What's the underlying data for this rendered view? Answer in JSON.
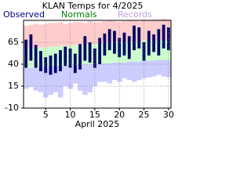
{
  "chart_data": {
    "type": "range-bar",
    "title": "KLAN Temps for 4/2025",
    "x_label": "April 2025",
    "x": [
      1,
      2,
      3,
      4,
      5,
      6,
      7,
      8,
      9,
      10,
      11,
      12,
      13,
      14,
      15,
      16,
      17,
      18,
      19,
      20,
      21,
      22,
      23,
      24,
      25,
      26,
      27,
      28,
      29,
      30
    ],
    "series": [
      {
        "name": "Observed",
        "color": "#000066",
        "legend_color": "#000080",
        "low": [
          36,
          44,
          36,
          32,
          30,
          28,
          30,
          32,
          38,
          36,
          30,
          34,
          44,
          42,
          36,
          40,
          50,
          56,
          52,
          48,
          50,
          46,
          56,
          58,
          44,
          50,
          54,
          50,
          58,
          56
        ],
        "high": [
          68,
          74,
          62,
          55,
          48,
          50,
          52,
          56,
          60,
          58,
          52,
          63,
          72,
          65,
          58,
          70,
          75,
          80,
          78,
          70,
          76,
          72,
          84,
          82,
          65,
          78,
          74,
          80,
          85,
          82
        ]
      },
      {
        "name": "Normals",
        "color": "#ccffcc",
        "legend_color": "#008000",
        "low": [
          36,
          36,
          36,
          37,
          37,
          37,
          38,
          38,
          38,
          39,
          39,
          39,
          40,
          40,
          40,
          41,
          41,
          41,
          42,
          42,
          42,
          43,
          43,
          43,
          44,
          44,
          44,
          45,
          45,
          45
        ],
        "high": [
          58,
          58,
          59,
          59,
          59,
          60,
          60,
          61,
          61,
          61,
          62,
          62,
          62,
          63,
          63,
          63,
          64,
          64,
          65,
          65,
          65,
          66,
          66,
          66,
          67,
          67,
          67,
          68,
          68,
          68
        ]
      },
      {
        "name": "Records",
        "color_high": "#ffcccc",
        "color_low": "#ccccff",
        "legend_color": "#c0a0e0",
        "low": [
          12,
          14,
          10,
          8,
          2,
          5,
          8,
          2,
          15,
          12,
          18,
          10,
          5,
          8,
          15,
          20,
          20,
          18,
          22,
          20,
          24,
          22,
          20,
          22,
          24,
          25,
          26,
          28,
          26,
          25
        ],
        "high": [
          84,
          85,
          86,
          85,
          86,
          87,
          87,
          88,
          86,
          87,
          88,
          88,
          87,
          89,
          88,
          88,
          89,
          90,
          89,
          88,
          89,
          90,
          90,
          89,
          91,
          90,
          91,
          91,
          92,
          91
        ]
      }
    ],
    "xlim": [
      0.5,
      30.5
    ],
    "xticks": [
      5,
      10,
      15,
      20,
      25,
      30
    ],
    "ylim": [
      -10,
      90
    ],
    "yticks": [
      -10,
      15,
      40,
      65
    ],
    "grid": true
  }
}
